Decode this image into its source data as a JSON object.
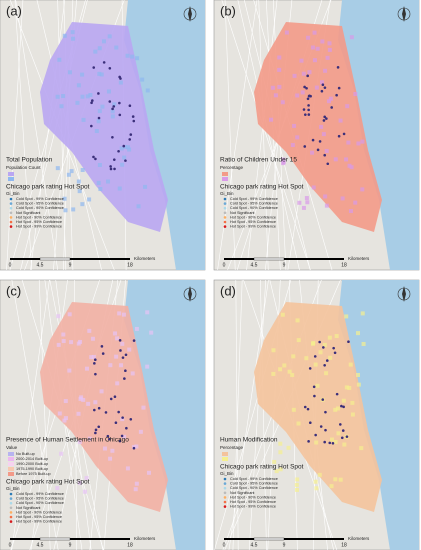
{
  "panels": [
    {
      "label": "(a)",
      "layer_title": "Total Population",
      "layer_subtitle": "Population Count",
      "layer_classes": []
    },
    {
      "label": "(b)",
      "layer_title": "Ratio of Children Under 15",
      "layer_subtitle": "Percentage",
      "layer_classes": []
    },
    {
      "label": "(c)",
      "layer_title": "Presence of Human Settlement in Chicago",
      "layer_subtitle": "Value",
      "layer_classes": [
        "No Built-up",
        "2000-2014 Built-up",
        "1990-2000 Built-up",
        "1975-1990 Built-up",
        "Before 1975 Built-up"
      ]
    },
    {
      "label": "(d)",
      "layer_title": "Human Modification",
      "layer_subtitle": "Percentage",
      "layer_classes": []
    }
  ],
  "hotspot_legend": {
    "title": "Chicago park rating Hot Spot",
    "field": "Gi_Bin",
    "classes": [
      "Cold Spot - 99% Confidence",
      "Cold Spot - 95% Confidence",
      "Cold Spot - 90% Confidence",
      "Not Significant",
      "Hot Spot - 90% Confidence",
      "Hot Spot - 95% Confidence",
      "Hot Spot - 99% Confidence"
    ]
  },
  "scale_bar": {
    "ticks": [
      "0",
      "4.5",
      "9",
      "18"
    ],
    "unit": "Kilometers"
  }
}
